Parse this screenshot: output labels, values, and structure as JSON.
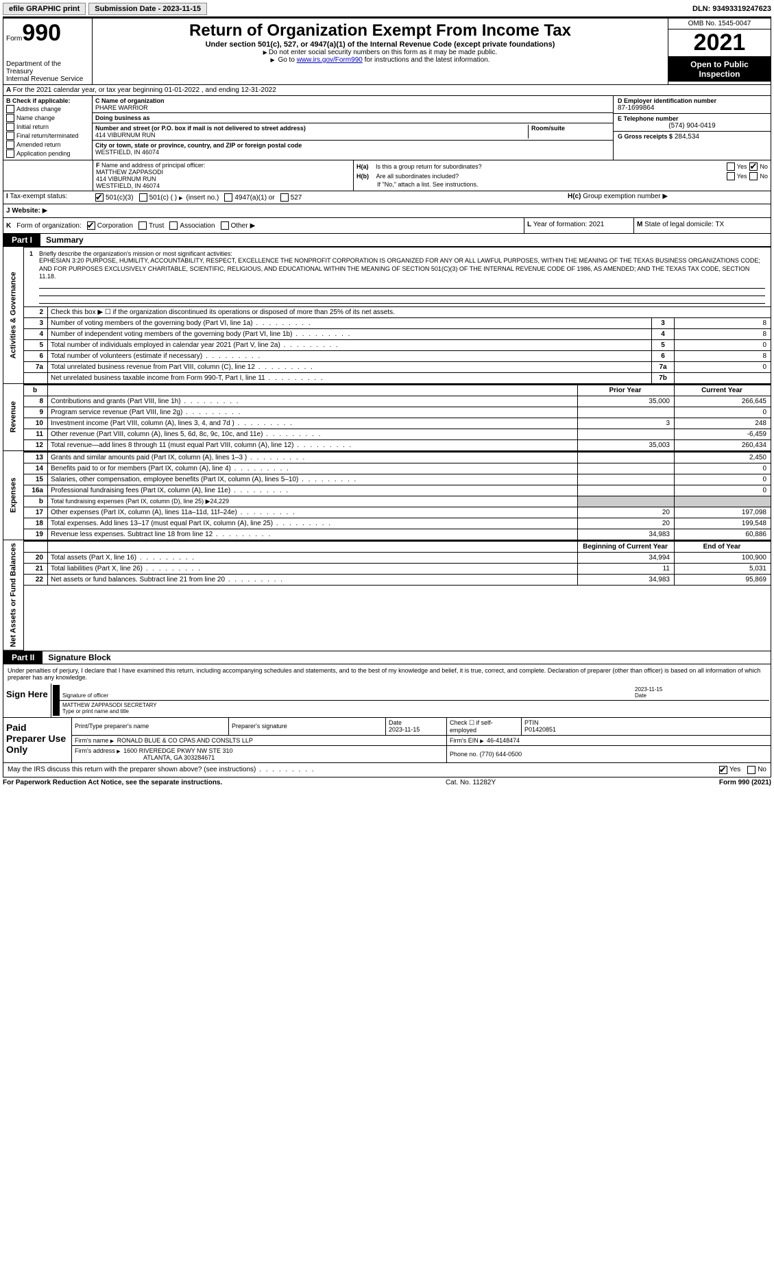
{
  "topbar": {
    "efile": "efile GRAPHIC print",
    "submission_label": "Submission Date - 2023-11-15",
    "dln_label": "DLN: 93493319247623"
  },
  "header": {
    "form_prefix": "Form",
    "form_number": "990",
    "dept": "Department of the Treasury",
    "irs": "Internal Revenue Service",
    "title": "Return of Organization Exempt From Income Tax",
    "subtitle": "Under section 501(c), 527, or 4947(a)(1) of the Internal Revenue Code (except private foundations)",
    "note1": "Do not enter social security numbers on this form as it may be made public.",
    "note2_pre": "Go to ",
    "note2_link": "www.irs.gov/Form990",
    "note2_post": " for instructions and the latest information.",
    "omb": "OMB No. 1545-0047",
    "year": "2021",
    "inspection": "Open to Public Inspection"
  },
  "row_a": "For the 2021 calendar year, or tax year beginning 01-01-2022    , and ending 12-31-2022",
  "box_b": {
    "hdr": "Check if applicable:",
    "items": [
      "Address change",
      "Name change",
      "Initial return",
      "Final return/terminated",
      "Amended return",
      "Application pending"
    ]
  },
  "box_c": {
    "name_lbl": "Name of organization",
    "name": "PHARE WARRIOR",
    "dba_lbl": "Doing business as",
    "addr_lbl": "Number and street (or P.O. box if mail is not delivered to street address)",
    "room_lbl": "Room/suite",
    "addr": "414 VIBURNUM RUN",
    "city_lbl": "City or town, state or province, country, and ZIP or foreign postal code",
    "city": "WESTFIELD, IN  46074"
  },
  "box_d": {
    "ein_lbl": "D Employer identification number",
    "ein": "87-1699864",
    "tel_lbl": "E Telephone number",
    "tel": "(574) 904-0419",
    "gross_lbl": "G Gross receipts $",
    "gross": "284,534"
  },
  "box_f": {
    "lbl": "Name and address of principal officer:",
    "l1": "MATTHEW ZAPPASODI",
    "l2": "414 VIBURNUM RUN",
    "l3": "WESTFIELD, IN  46074"
  },
  "box_h": {
    "ha": "Is this a group return for subordinates?",
    "hb": "Are all subordinates included?",
    "hnote": "If \"No,\" attach a list. See instructions.",
    "hc": "Group exemption number"
  },
  "row_i": {
    "lbl": "Tax-exempt status:",
    "o1": "501(c)(3)",
    "o2": "501(c) (  )",
    "o2_hint": "(insert no.)",
    "o3": "4947(a)(1) or",
    "o4": "527"
  },
  "row_j_lbl": "Website:",
  "row_k": {
    "lbl": "Form of organization:",
    "opts": [
      "Corporation",
      "Trust",
      "Association",
      "Other"
    ],
    "l_lbl": "Year of formation:",
    "l_val": "2021",
    "m_lbl": "State of legal domicile:",
    "m_val": "TX"
  },
  "parts": {
    "p1": "Part I",
    "p1_title": "Summary",
    "p2": "Part II",
    "p2_title": "Signature Block"
  },
  "vlabels": {
    "act": "Activities & Governance",
    "rev": "Revenue",
    "exp": "Expenses",
    "net": "Net Assets or Fund Balances"
  },
  "mission": {
    "lbl": "Briefly describe the organization's mission or most significant activities:",
    "text": "EPHESIAN 3:20 PURPOSE, HUMILITY, ACCOUNTABILITY, RESPECT, EXCELLENCE THE NONPROFIT CORPORATION IS ORGANIZED FOR ANY OR ALL LAWFUL PURPOSES, WITHIN THE MEANING OF THE TEXAS BUSINESS ORGANIZATIONS CODE; AND FOR PURPOSES EXCLUSIVELY CHARITABLE, SCIENTIFIC, RELIGIOUS, AND EDUCATIONAL WITHIN THE MEANING OF SECTION 501(C)(3) OF THE INTERNAL REVENUE CODE OF 1986, AS AMENDED; AND THE TEXAS TAX CODE, SECTION 11.18."
  },
  "lines_gov": [
    {
      "n": "2",
      "t": "Check this box ▶ ☐  if the organization discontinued its operations or disposed of more than 25% of its net assets."
    },
    {
      "n": "3",
      "t": "Number of voting members of the governing body (Part VI, line 1a)",
      "c": "3",
      "v": "8"
    },
    {
      "n": "4",
      "t": "Number of independent voting members of the governing body (Part VI, line 1b)",
      "c": "4",
      "v": "8"
    },
    {
      "n": "5",
      "t": "Total number of individuals employed in calendar year 2021 (Part V, line 2a)",
      "c": "5",
      "v": "0"
    },
    {
      "n": "6",
      "t": "Total number of volunteers (estimate if necessary)",
      "c": "6",
      "v": "8"
    },
    {
      "n": "7a",
      "t": "Total unrelated business revenue from Part VIII, column (C), line 12",
      "c": "7a",
      "v": "0"
    },
    {
      "n": "",
      "t": "Net unrelated business taxable income from Form 990-T, Part I, line 11",
      "c": "7b",
      "v": ""
    }
  ],
  "col_hdrs": {
    "prior": "Prior Year",
    "current": "Current Year",
    "boy": "Beginning of Current Year",
    "eoy": "End of Year"
  },
  "lines_rev": [
    {
      "n": "8",
      "t": "Contributions and grants (Part VIII, line 1h)",
      "p": "35,000",
      "c": "266,645"
    },
    {
      "n": "9",
      "t": "Program service revenue (Part VIII, line 2g)",
      "p": "",
      "c": "0"
    },
    {
      "n": "10",
      "t": "Investment income (Part VIII, column (A), lines 3, 4, and 7d )",
      "p": "3",
      "c": "248"
    },
    {
      "n": "11",
      "t": "Other revenue (Part VIII, column (A), lines 5, 6d, 8c, 9c, 10c, and 11e)",
      "p": "",
      "c": "-6,459"
    },
    {
      "n": "12",
      "t": "Total revenue—add lines 8 through 11 (must equal Part VIII, column (A), line 12)",
      "p": "35,003",
      "c": "260,434"
    }
  ],
  "lines_exp": [
    {
      "n": "13",
      "t": "Grants and similar amounts paid (Part IX, column (A), lines 1–3 )",
      "p": "",
      "c": "2,450"
    },
    {
      "n": "14",
      "t": "Benefits paid to or for members (Part IX, column (A), line 4)",
      "p": "",
      "c": "0"
    },
    {
      "n": "15",
      "t": "Salaries, other compensation, employee benefits (Part IX, column (A), lines 5–10)",
      "p": "",
      "c": "0"
    },
    {
      "n": "16a",
      "t": "Professional fundraising fees (Part IX, column (A), line 11e)",
      "p": "",
      "c": "0"
    },
    {
      "n": "b",
      "t": "Total fundraising expenses (Part IX, column (D), line 25) ▶24,229",
      "shade": true
    },
    {
      "n": "17",
      "t": "Other expenses (Part IX, column (A), lines 11a–11d, 11f–24e)",
      "p": "20",
      "c": "197,098"
    },
    {
      "n": "18",
      "t": "Total expenses. Add lines 13–17 (must equal Part IX, column (A), line 25)",
      "p": "20",
      "c": "199,548"
    },
    {
      "n": "19",
      "t": "Revenue less expenses. Subtract line 18 from line 12",
      "p": "34,983",
      "c": "60,886"
    }
  ],
  "lines_net": [
    {
      "n": "20",
      "t": "Total assets (Part X, line 16)",
      "p": "34,994",
      "c": "100,900"
    },
    {
      "n": "21",
      "t": "Total liabilities (Part X, line 26)",
      "p": "11",
      "c": "5,031"
    },
    {
      "n": "22",
      "t": "Net assets or fund balances. Subtract line 21 from line 20",
      "p": "34,983",
      "c": "95,869"
    }
  ],
  "sig_intro": "Under penalties of perjury, I declare that I have examined this return, including accompanying schedules and statements, and to the best of my knowledge and belief, it is true, correct, and complete. Declaration of preparer (other than officer) is based on all information of which preparer has any knowledge.",
  "sign": {
    "here": "Sign Here",
    "sig_lbl": "Signature of officer",
    "date_lbl": "Date",
    "date": "2023-11-15",
    "name": "MATTHEW ZAPPASODI  SECRETARY",
    "name_lbl": "Type or print name and title"
  },
  "paid": {
    "hdr": "Paid Preparer Use Only",
    "c1": "Print/Type preparer's name",
    "c2": "Preparer's signature",
    "c3_lbl": "Date",
    "c3": "2023-11-15",
    "c4_lbl": "Check ☐ if self-employed",
    "c5_lbl": "PTIN",
    "c5": "P01420851",
    "firm_lbl": "Firm's name",
    "firm": "RONALD BLUE & CO CPAS AND CONSLTS LLP",
    "ein_lbl": "Firm's EIN",
    "ein": "46-4148474",
    "addr_lbl": "Firm's address",
    "addr1": "1600 RIVEREDGE PKWY NW STE 310",
    "addr2": "ATLANTA, GA  303284671",
    "phone_lbl": "Phone no.",
    "phone": "(770) 644-0500"
  },
  "may": "May the IRS discuss this return with the preparer shown above? (see instructions)",
  "footer": {
    "l": "For Paperwork Reduction Act Notice, see the separate instructions.",
    "m": "Cat. No. 11282Y",
    "r": "Form 990 (2021)"
  }
}
